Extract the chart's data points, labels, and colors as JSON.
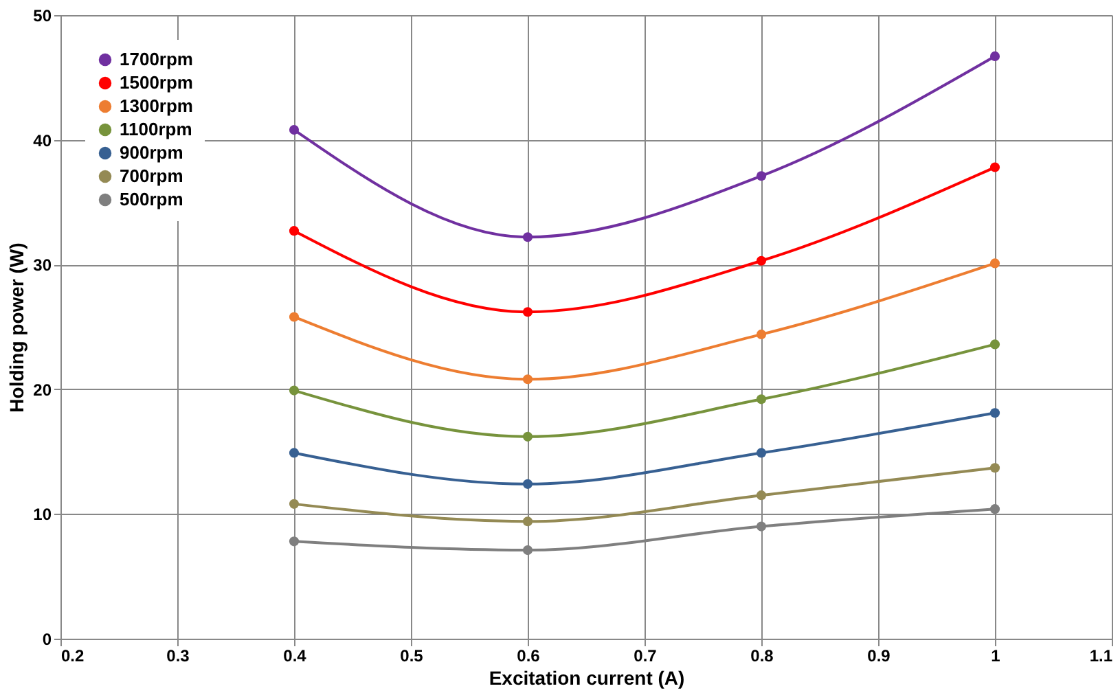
{
  "chart_data": {
    "type": "line",
    "xlabel": "Excitation current (A)",
    "ylabel": "Holding power (W)",
    "x": [
      0.4,
      0.6,
      0.8,
      1.0
    ],
    "xlim": [
      0.2,
      1.1
    ],
    "xticks": [
      0.2,
      0.3,
      0.4,
      0.5,
      0.6,
      0.7,
      0.8,
      0.9,
      1,
      1.1
    ],
    "ylim": [
      0,
      50
    ],
    "yticks": [
      0,
      10,
      20,
      30,
      40,
      50
    ],
    "grid": true,
    "legend": "left",
    "marker": "circle",
    "line_style": "solid",
    "series": [
      {
        "name": "1700rpm",
        "color": "#7030a0",
        "values": [
          40.8,
          32.2,
          37.1,
          46.7
        ]
      },
      {
        "name": "1500rpm",
        "color": "#ff0000",
        "values": [
          32.7,
          26.2,
          30.3,
          37.8
        ]
      },
      {
        "name": "1300rpm",
        "color": "#ed7d31",
        "values": [
          25.8,
          20.8,
          24.4,
          30.1
        ]
      },
      {
        "name": "1100rpm",
        "color": "#77933c",
        "values": [
          19.9,
          16.2,
          19.2,
          23.6
        ]
      },
      {
        "name": "900rpm",
        "color": "#376092",
        "values": [
          14.9,
          12.4,
          14.9,
          18.1
        ]
      },
      {
        "name": "700rpm",
        "color": "#948a54",
        "values": [
          10.8,
          9.4,
          11.5,
          13.7
        ]
      },
      {
        "name": "500rpm",
        "color": "#7f7f7f",
        "values": [
          7.8,
          7.1,
          9.0,
          10.4
        ]
      }
    ]
  }
}
